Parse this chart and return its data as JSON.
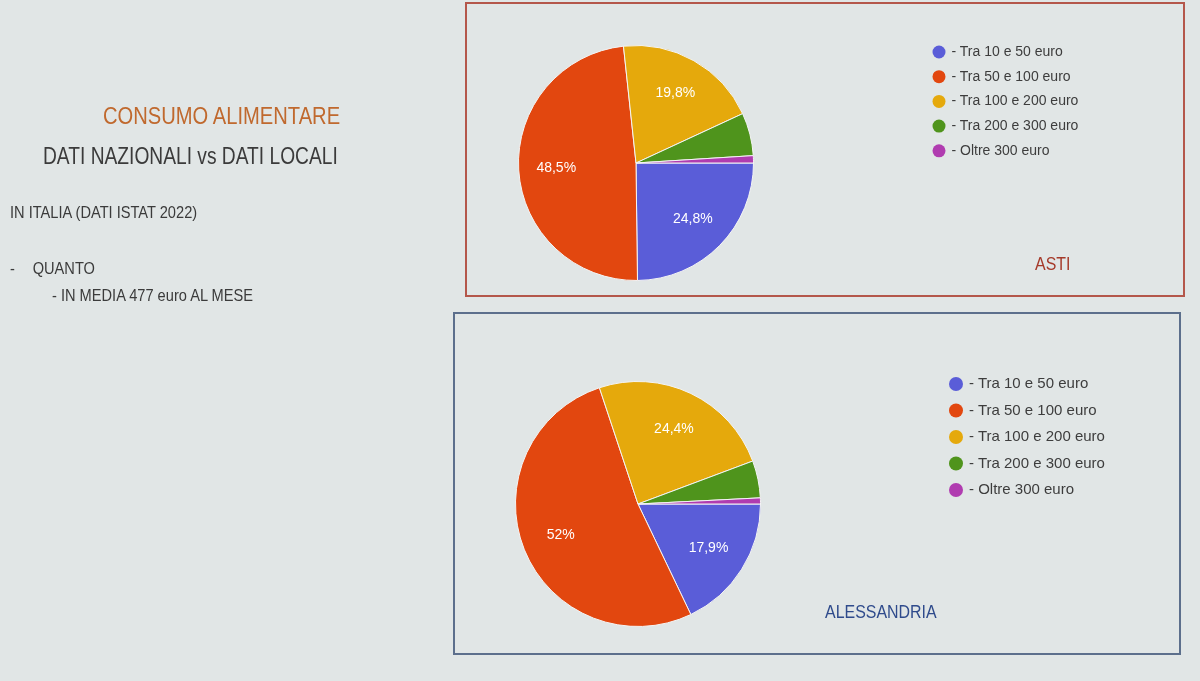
{
  "chart_data": [
    {
      "type": "other",
      "title": "CONSUMO ALIMENTARE",
      "subtitle": "DATI NAZIONALI vs DATI LOCALI",
      "annotations": [
        "IN ITALIA (DATI ISTAT 2022)",
        "- QUANTO",
        "- IN MEDIA 477 euro AL MESE"
      ]
    },
    {
      "type": "pie",
      "title": "ASTI",
      "categories": [
        "- Tra 10 e 50 euro",
        "- Tra 50 e 100 euro",
        "- Tra 100 e 200 euro",
        "- Tra 200 e 300 euro",
        "- Oltre 300 euro"
      ],
      "values": [
        24.8,
        48.5,
        19.8,
        5.9,
        1.0
      ],
      "colors": [
        "#5a5dd8",
        "#e2470f",
        "#e5a90c",
        "#4f941c",
        "#b03cb0"
      ],
      "value_labels": [
        "24,8%",
        "48,5%",
        "19,8%",
        null,
        null
      ],
      "legend": "right"
    },
    {
      "type": "pie",
      "title": "ALESSANDRIA",
      "categories": [
        "- Tra 10 e 50 euro",
        "- Tra 50 e 100 euro",
        "- Tra 100 e 200 euro",
        "- Tra 200 e 300 euro",
        "- Oltre 300 euro"
      ],
      "values": [
        17.9,
        52,
        24.4,
        4.9,
        0.8
      ],
      "colors": [
        "#5a5dd8",
        "#e2470f",
        "#e5a90c",
        "#4f941c",
        "#b03cb0"
      ],
      "value_labels": [
        "17,9%",
        "52%",
        "24,4%",
        null,
        null
      ],
      "legend": "right"
    }
  ]
}
